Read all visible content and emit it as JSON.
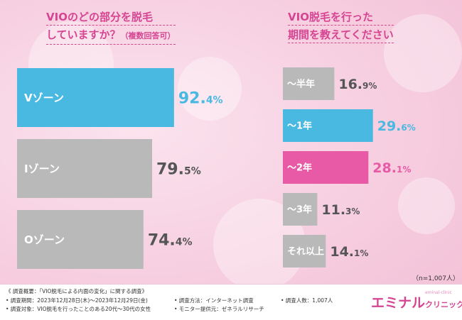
{
  "chart_data": [
    {
      "type": "bar",
      "orientation": "horizontal",
      "title_lines": [
        "VIOのどの部分を脱毛",
        "していますか？"
      ],
      "title_suffix": "（複数回答可）",
      "categories": [
        "Vゾーン",
        "Iゾーン",
        "Oゾーン"
      ],
      "values": [
        92.4,
        79.5,
        74.4
      ],
      "value_labels": [
        {
          "main": "92.",
          "small": "4%"
        },
        {
          "main": "79.",
          "small": "5%"
        },
        {
          "main": "74.",
          "small": "4%"
        }
      ],
      "colors": [
        "#4ab9e2",
        "#b9b9b9",
        "#b9b9b9"
      ],
      "label_colors": [
        "#4ab9e2",
        "#555555",
        "#555555"
      ],
      "xlim": [
        0,
        100
      ]
    },
    {
      "type": "bar",
      "orientation": "horizontal",
      "title_lines": [
        "VIO脱毛を行った",
        "期間を教えてください"
      ],
      "title_suffix": "",
      "categories": [
        "〜半年",
        "〜1年",
        "〜2年",
        "〜3年",
        "それ以上"
      ],
      "values": [
        16.9,
        29.6,
        28.1,
        11.3,
        14.1
      ],
      "value_labels": [
        {
          "main": "16.",
          "small": "9%"
        },
        {
          "main": "29.",
          "small": "6%"
        },
        {
          "main": "28.",
          "small": "1%"
        },
        {
          "main": "11.",
          "small": "3%"
        },
        {
          "main": "14.",
          "small": "1%"
        }
      ],
      "colors": [
        "#b9b9b9",
        "#4ab9e2",
        "#e85aa6",
        "#b9b9b9",
        "#b9b9b9"
      ],
      "label_colors": [
        "#555555",
        "#4ab9e2",
        "#e85aa6",
        "#555555",
        "#555555"
      ],
      "xlim": [
        0,
        32
      ]
    }
  ],
  "n_note": "（n=1,007人）",
  "footer": {
    "heading": "《 調査概要：「VIO脱毛による内面の変化」に関する調査》",
    "period": "• 調査期間：2023年12月28日(木)〜2023年12月29日(金)",
    "method": "• 調査方法：インターネット調査",
    "count": "• 調査人数：1,007人",
    "target": "• 調査対象：VIO脱毛を行ったことのある20代〜30代の女性",
    "provider": "• モニター提供元：ゼネラルリサーチ"
  },
  "logo": {
    "main": "エミナル",
    "sub": "クリニック",
    "tag": "eminal-clinic"
  }
}
